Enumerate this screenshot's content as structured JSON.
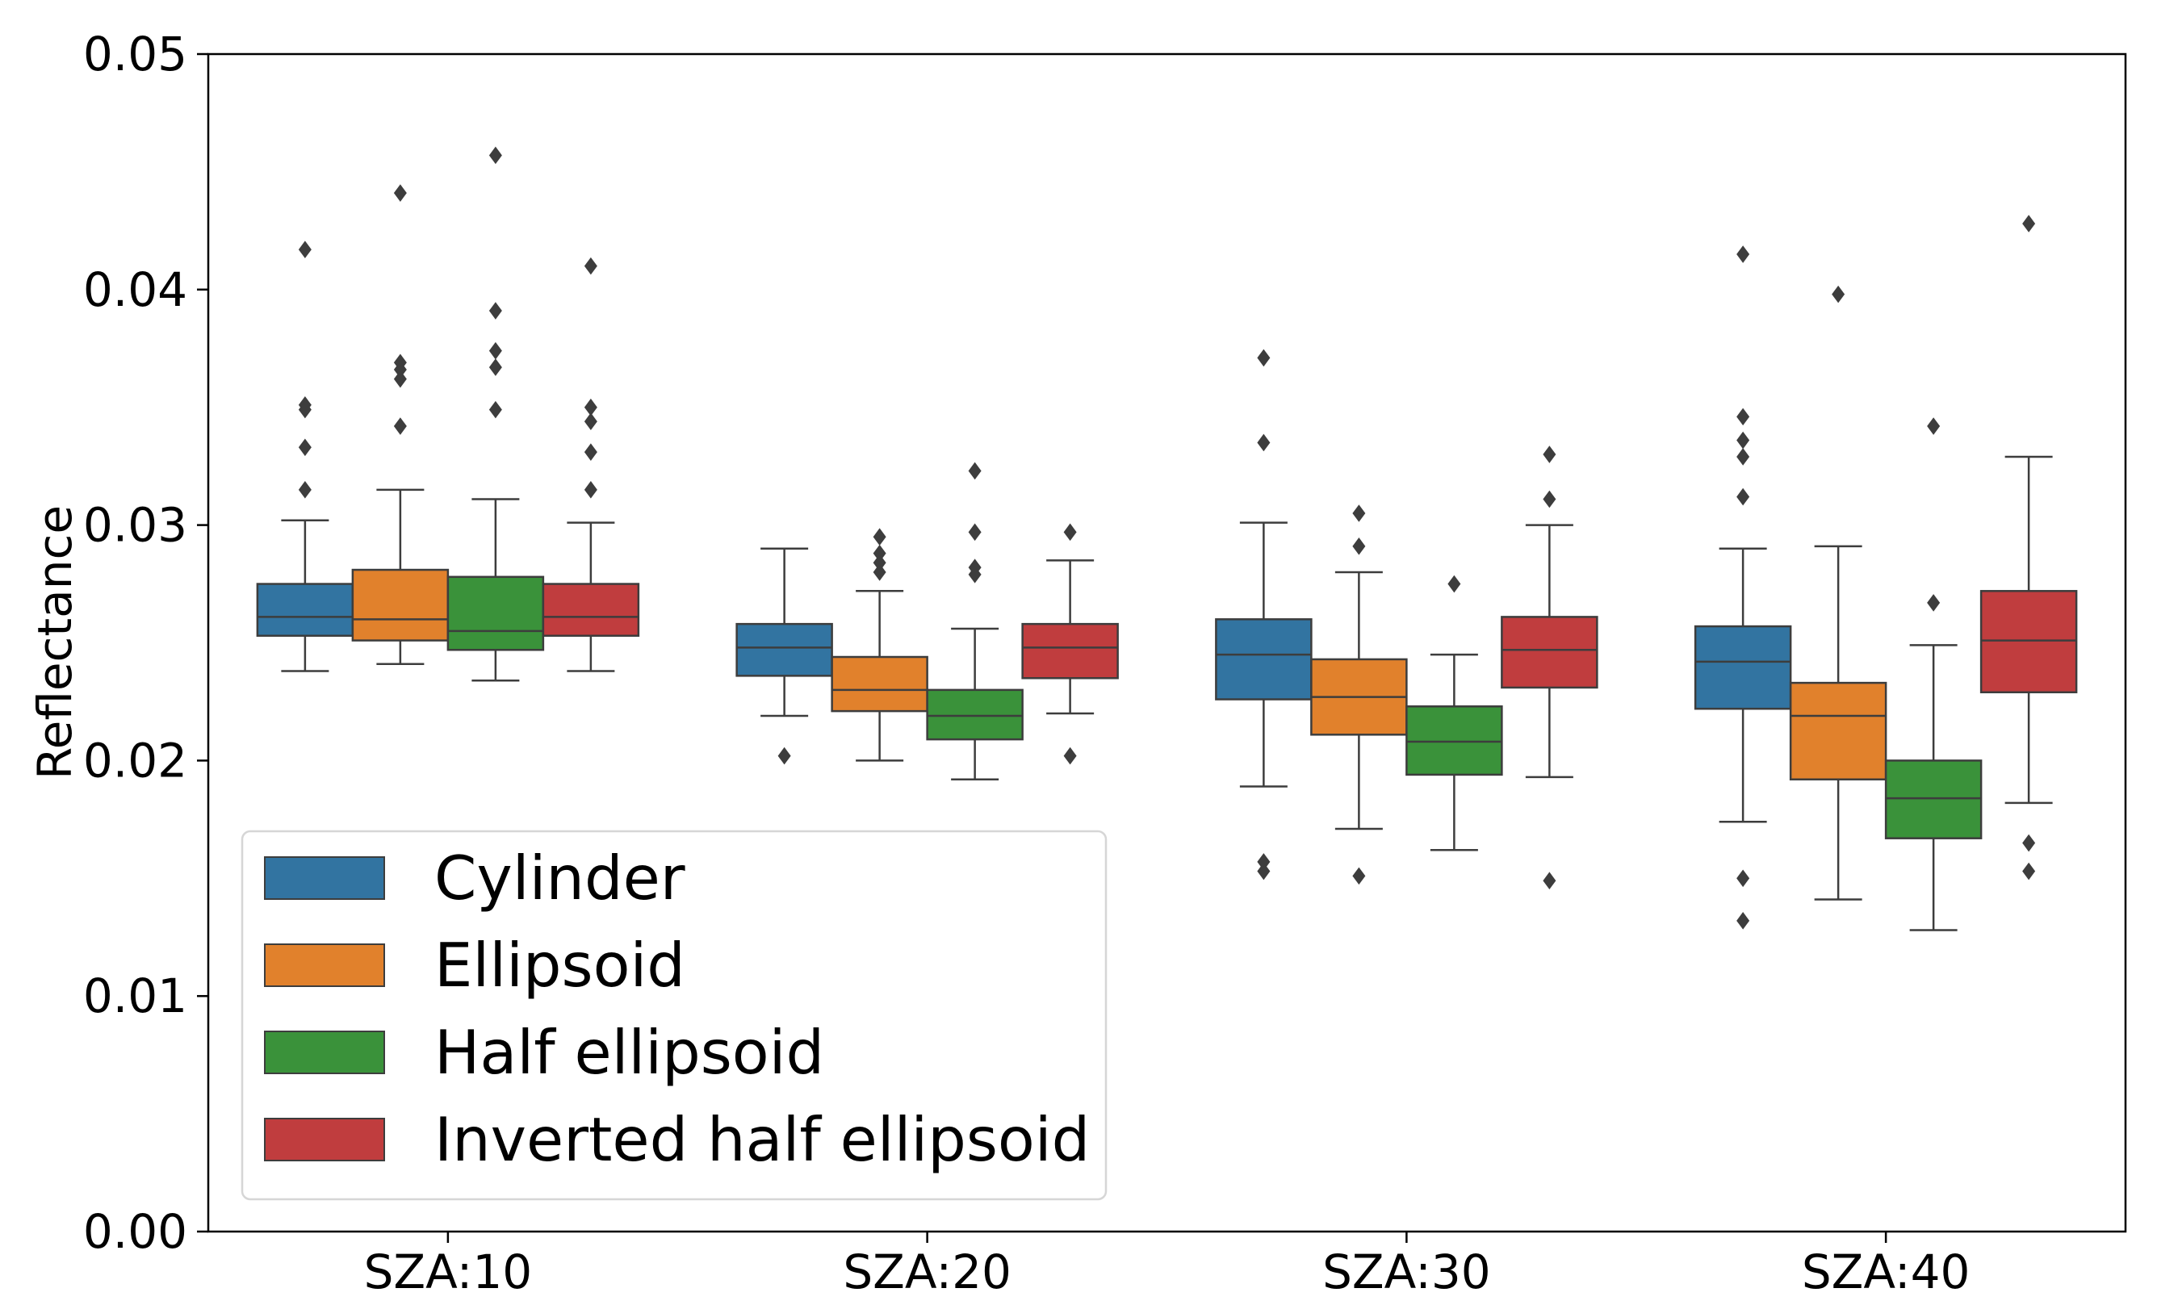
{
  "chart_data": {
    "type": "boxplot",
    "title": "",
    "xlabel": "",
    "ylabel": "Reflectance",
    "ylim": [
      0.0,
      0.05
    ],
    "yticks": [
      0.0,
      0.01,
      0.02,
      0.03,
      0.04,
      0.05
    ],
    "ytick_labels": [
      "0.00",
      "0.01",
      "0.02",
      "0.03",
      "0.04",
      "0.05"
    ],
    "categories": [
      "SZA:10",
      "SZA:20",
      "SZA:30",
      "SZA:40"
    ],
    "legend": {
      "location": "lower-left"
    },
    "series": [
      {
        "name": "Cylinder",
        "color": "#3274a1",
        "boxes": [
          {
            "whisker_low": 0.0238,
            "q1": 0.0253,
            "median": 0.0261,
            "q3": 0.0275,
            "whisker_high": 0.0302,
            "outliers": [
              0.0417,
              0.0351,
              0.0349,
              0.0333,
              0.0315
            ]
          },
          {
            "whisker_low": 0.0219,
            "q1": 0.0236,
            "median": 0.0248,
            "q3": 0.0258,
            "whisker_high": 0.029,
            "outliers": [
              0.0202
            ]
          },
          {
            "whisker_low": 0.0189,
            "q1": 0.0226,
            "median": 0.0245,
            "q3": 0.026,
            "whisker_high": 0.0301,
            "outliers": [
              0.0371,
              0.0335,
              0.0157,
              0.0153
            ]
          },
          {
            "whisker_low": 0.0174,
            "q1": 0.0222,
            "median": 0.0242,
            "q3": 0.0257,
            "whisker_high": 0.029,
            "outliers": [
              0.0415,
              0.0346,
              0.0336,
              0.0329,
              0.0312,
              0.015,
              0.0132
            ]
          }
        ]
      },
      {
        "name": "Ellipsoid",
        "color": "#e1812c",
        "boxes": [
          {
            "whisker_low": 0.0241,
            "q1": 0.0251,
            "median": 0.026,
            "q3": 0.0281,
            "whisker_high": 0.0315,
            "outliers": [
              0.0441,
              0.0369,
              0.0366,
              0.0362,
              0.0342
            ]
          },
          {
            "whisker_low": 0.02,
            "q1": 0.0221,
            "median": 0.023,
            "q3": 0.0244,
            "whisker_high": 0.0272,
            "outliers": [
              0.0295,
              0.0288,
              0.0284,
              0.028
            ]
          },
          {
            "whisker_low": 0.0171,
            "q1": 0.0211,
            "median": 0.0227,
            "q3": 0.0243,
            "whisker_high": 0.028,
            "outliers": [
              0.0305,
              0.0291,
              0.0151
            ]
          },
          {
            "whisker_low": 0.0141,
            "q1": 0.0192,
            "median": 0.0219,
            "q3": 0.0233,
            "whisker_high": 0.0291,
            "outliers": [
              0.0398
            ]
          }
        ]
      },
      {
        "name": "Half ellipsoid",
        "color": "#3a923a",
        "boxes": [
          {
            "whisker_low": 0.0234,
            "q1": 0.0247,
            "median": 0.0255,
            "q3": 0.0278,
            "whisker_high": 0.0311,
            "outliers": [
              0.0457,
              0.0391,
              0.0374,
              0.0367,
              0.0349
            ]
          },
          {
            "whisker_low": 0.0192,
            "q1": 0.0209,
            "median": 0.0219,
            "q3": 0.023,
            "whisker_high": 0.0256,
            "outliers": [
              0.0323,
              0.0297,
              0.0282,
              0.0279
            ]
          },
          {
            "whisker_low": 0.0162,
            "q1": 0.0194,
            "median": 0.0208,
            "q3": 0.0223,
            "whisker_high": 0.0245,
            "outliers": [
              0.0275
            ]
          },
          {
            "whisker_low": 0.0128,
            "q1": 0.0167,
            "median": 0.0184,
            "q3": 0.02,
            "whisker_high": 0.0249,
            "outliers": [
              0.0342,
              0.0267
            ]
          }
        ]
      },
      {
        "name": "Inverted half ellipsoid",
        "color": "#c03d3e",
        "boxes": [
          {
            "whisker_low": 0.0238,
            "q1": 0.0253,
            "median": 0.0261,
            "q3": 0.0275,
            "whisker_high": 0.0301,
            "outliers": [
              0.041,
              0.035,
              0.0344,
              0.0331,
              0.0315
            ]
          },
          {
            "whisker_low": 0.022,
            "q1": 0.0235,
            "median": 0.0248,
            "q3": 0.0258,
            "whisker_high": 0.0285,
            "outliers": [
              0.0297,
              0.0202
            ]
          },
          {
            "whisker_low": 0.0193,
            "q1": 0.0231,
            "median": 0.0247,
            "q3": 0.0261,
            "whisker_high": 0.03,
            "outliers": [
              0.033,
              0.0311,
              0.0149
            ]
          },
          {
            "whisker_low": 0.0182,
            "q1": 0.0229,
            "median": 0.0251,
            "q3": 0.0272,
            "whisker_high": 0.0329,
            "outliers": [
              0.0428,
              0.0165,
              0.0153
            ]
          }
        ]
      }
    ]
  }
}
